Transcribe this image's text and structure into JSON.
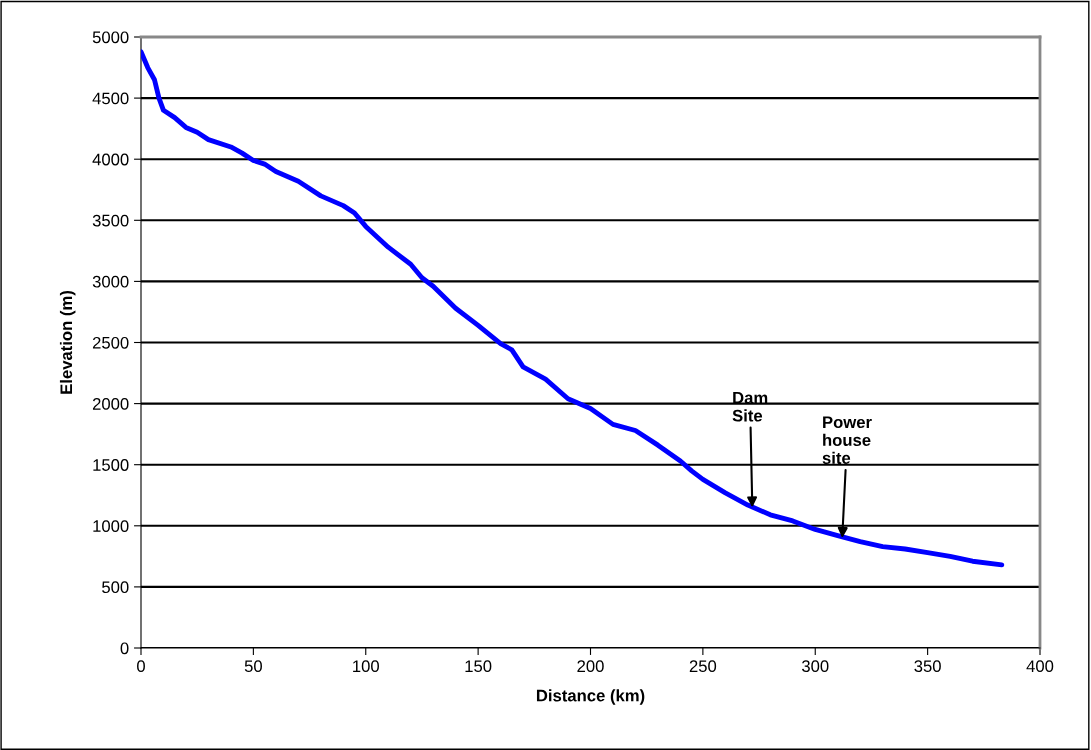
{
  "chart_data": {
    "type": "line",
    "xlabel": "Distance (km)",
    "ylabel": "Elevation (m)",
    "x": [
      0,
      3,
      6,
      8,
      10,
      15,
      20,
      25,
      30,
      40,
      45,
      50,
      55,
      60,
      70,
      80,
      90,
      95,
      100,
      110,
      120,
      125,
      130,
      140,
      150,
      160,
      165,
      170,
      180,
      190,
      200,
      210,
      220,
      230,
      240,
      245,
      250,
      260,
      270,
      280,
      290,
      300,
      310,
      320,
      330,
      340,
      350,
      360,
      370,
      383
    ],
    "series": [
      {
        "color": "#0000ff",
        "values": [
          4880,
          4750,
          4650,
          4500,
          4400,
          4340,
          4260,
          4220,
          4160,
          4100,
          4050,
          3990,
          3960,
          3900,
          3820,
          3700,
          3620,
          3560,
          3450,
          3280,
          3140,
          3030,
          2960,
          2780,
          2640,
          2490,
          2440,
          2300,
          2200,
          2040,
          1960,
          1830,
          1780,
          1660,
          1530,
          1450,
          1380,
          1270,
          1170,
          1090,
          1040,
          970,
          920,
          870,
          830,
          810,
          780,
          750,
          710,
          680
        ]
      }
    ],
    "xlim": [
      0,
      400
    ],
    "xticks": [
      0,
      50,
      100,
      150,
      200,
      250,
      300,
      350,
      400
    ],
    "ylim": [
      0,
      5000
    ],
    "yticks": [
      0,
      500,
      1000,
      1500,
      2000,
      2500,
      3000,
      3500,
      4000,
      4500,
      5000
    ],
    "grid": "y",
    "marker": "none",
    "line_style": "solid",
    "annotations": [
      {
        "text": "Dam\nSite",
        "x": 272,
        "y": 1150
      },
      {
        "text": "Power\nhouse\nsite",
        "x": 312,
        "y": 900
      }
    ]
  }
}
